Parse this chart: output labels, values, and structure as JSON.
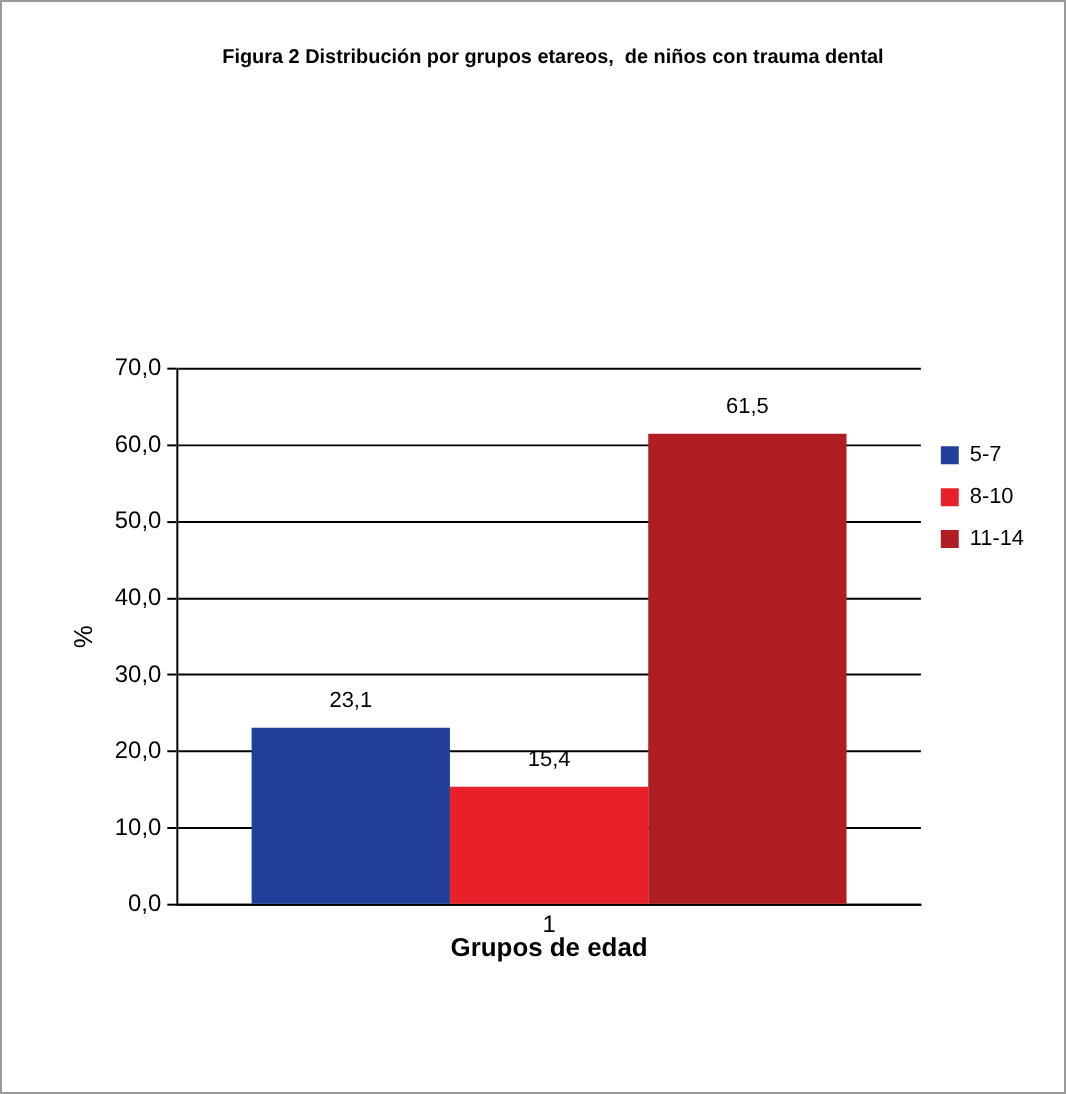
{
  "chart_data": {
    "type": "bar",
    "title": "Figura 2 Distribución por grupos etareos,  de niños con trauma dental",
    "xlabel": "Grupos de edad",
    "ylabel": "%",
    "categories": [
      "1"
    ],
    "series": [
      {
        "name": "5-7",
        "color": "#1f3f9a",
        "values": [
          23.1
        ],
        "value_labels": [
          "23,1"
        ]
      },
      {
        "name": "8-10",
        "color": "#e8202a",
        "values": [
          15.4
        ],
        "value_labels": [
          "15,4"
        ]
      },
      {
        "name": "11-14",
        "color": "#b01e24",
        "values": [
          61.5
        ],
        "value_labels": [
          "61,5"
        ]
      }
    ],
    "ylim": [
      0,
      70
    ],
    "yticks": [
      {
        "value": 0,
        "label": "0,0"
      },
      {
        "value": 10,
        "label": "10,0"
      },
      {
        "value": 20,
        "label": "20,0"
      },
      {
        "value": 30,
        "label": "30,0"
      },
      {
        "value": 40,
        "label": "40,0"
      },
      {
        "value": 50,
        "label": "50,0"
      },
      {
        "value": 60,
        "label": "60,0"
      },
      {
        "value": 70,
        "label": "70,0"
      }
    ],
    "grid": "y",
    "legend": "right"
  }
}
